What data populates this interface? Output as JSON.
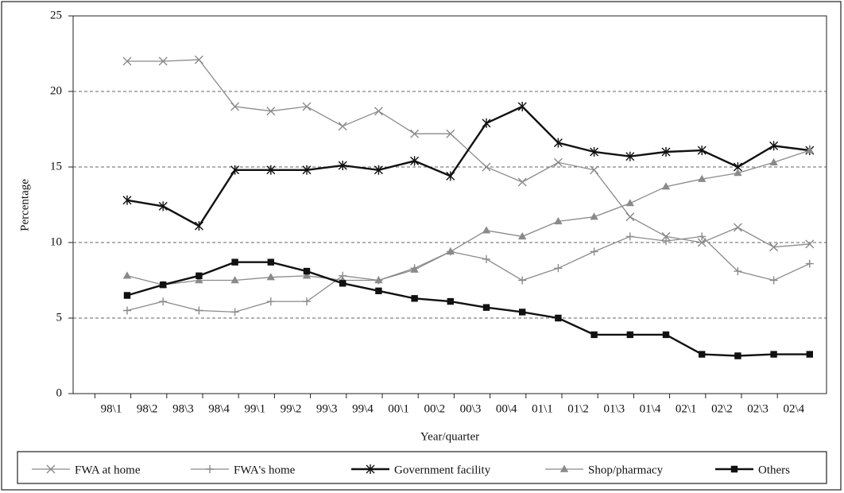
{
  "chart_data": {
    "type": "line",
    "x_label": "Year/quarter",
    "y_label": "Percentage",
    "categories": [
      "98\\1",
      "98\\2",
      "98\\3",
      "98\\4",
      "99\\1",
      "99\\2",
      "99\\3",
      "99\\4",
      "00\\1",
      "00\\2",
      "00\\3",
      "00\\4",
      "01\\1",
      "01\\2",
      "01\\3",
      "01\\4",
      "02\\1",
      "02\\2",
      "02\\3",
      "02\\4"
    ],
    "ylim": [
      0,
      25
    ],
    "yticks": [
      0,
      5,
      10,
      15,
      20,
      25
    ],
    "grid": true,
    "series": [
      {
        "name": "FWA at home",
        "color": "#8a8a8a",
        "marker": "x",
        "line_width": 1.3,
        "values": [
          22,
          22,
          22.1,
          19,
          18.7,
          19,
          17.7,
          18.7,
          17.2,
          17.2,
          15,
          14,
          15.3,
          14.8,
          11.7,
          10.4,
          10,
          11,
          9.7,
          9.9
        ]
      },
      {
        "name": "FWA's home",
        "color": "#8a8a8a",
        "marker": "plus",
        "line_width": 1.3,
        "values": [
          5.5,
          6.1,
          5.5,
          5.4,
          6.1,
          6.1,
          7.8,
          7.5,
          8.3,
          9.4,
          8.9,
          7.5,
          8.3,
          9.4,
          10.4,
          10.1,
          10.4,
          8.1,
          7.5,
          8.6
        ]
      },
      {
        "name": "Government facility",
        "color": "#111111",
        "marker": "star",
        "line_width": 2.4,
        "values": [
          12.8,
          12.4,
          11.1,
          14.8,
          14.8,
          14.8,
          15.1,
          14.8,
          15.4,
          14.4,
          17.9,
          19,
          16.6,
          16,
          15.7,
          16,
          16.1,
          15,
          16.4,
          16.1
        ]
      },
      {
        "name": "Shop/pharmacy",
        "color": "#8a8a8a",
        "marker": "triangle",
        "line_width": 1.3,
        "values": [
          7.8,
          7.2,
          7.5,
          7.5,
          7.7,
          7.8,
          7.5,
          7.5,
          8.2,
          9.4,
          10.8,
          10.4,
          11.4,
          11.7,
          12.6,
          13.7,
          14.2,
          14.6,
          15.3,
          16.1
        ]
      },
      {
        "name": "Others",
        "color": "#111111",
        "marker": "square",
        "line_width": 2.4,
        "values": [
          6.5,
          7.2,
          7.8,
          8.7,
          8.7,
          8.1,
          7.3,
          6.8,
          6.3,
          6.1,
          5.7,
          5.4,
          5.0,
          3.9,
          3.9,
          3.9,
          2.6,
          2.5,
          2.6,
          2.6
        ]
      }
    ]
  }
}
